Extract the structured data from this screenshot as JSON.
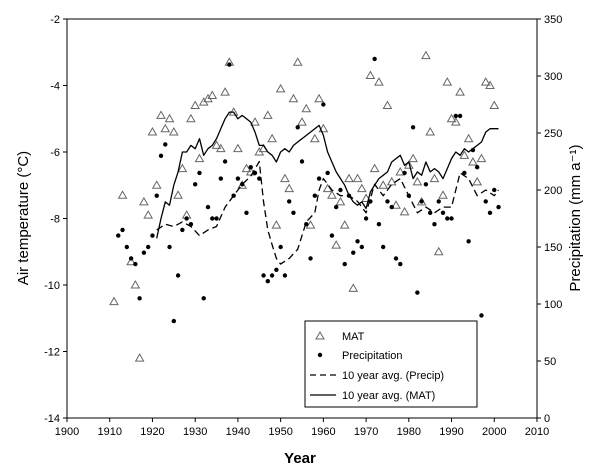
{
  "chart_data": {
    "type": "scatter",
    "xlabel": "Year",
    "ylabel_left": "Air temperature (°C)",
    "ylabel_right": "Precipitation (mm a⁻¹)",
    "xlim": [
      1900,
      2010
    ],
    "ylim_left": [
      -14,
      -2
    ],
    "ylim_right": [
      0,
      350
    ],
    "x_ticks": [
      1900,
      1910,
      1920,
      1930,
      1940,
      1950,
      1960,
      1970,
      1980,
      1990,
      2000,
      2010
    ],
    "y_left_ticks": [
      -14,
      -12,
      -10,
      -8,
      -6,
      -4,
      -2
    ],
    "y_right_ticks": [
      0,
      50,
      100,
      150,
      200,
      250,
      300,
      350
    ],
    "grid": false,
    "legend_position": "bottom-right",
    "series": [
      {
        "name": "MAT",
        "axis": "left",
        "marker": "triangle-open",
        "points": [
          [
            1911,
            -10.5
          ],
          [
            1913,
            -7.3
          ],
          [
            1915,
            -9.3
          ],
          [
            1916,
            -10.0
          ],
          [
            1917,
            -12.2
          ],
          [
            1918,
            -7.5
          ],
          [
            1919,
            -7.9
          ],
          [
            1920,
            -5.4
          ],
          [
            1921,
            -7.0
          ],
          [
            1922,
            -4.9
          ],
          [
            1923,
            -5.3
          ],
          [
            1924,
            -5.0
          ],
          [
            1925,
            -5.4
          ],
          [
            1926,
            -7.3
          ],
          [
            1927,
            -6.5
          ],
          [
            1928,
            -7.9
          ],
          [
            1929,
            -5.0
          ],
          [
            1930,
            -4.6
          ],
          [
            1931,
            -6.2
          ],
          [
            1932,
            -4.5
          ],
          [
            1933,
            -4.4
          ],
          [
            1934,
            -4.3
          ],
          [
            1935,
            -5.8
          ],
          [
            1936,
            -5.9
          ],
          [
            1937,
            -4.2
          ],
          [
            1938,
            -3.3
          ],
          [
            1939,
            -4.8
          ],
          [
            1940,
            -5.9
          ],
          [
            1941,
            -7.0
          ],
          [
            1942,
            -6.5
          ],
          [
            1943,
            -6.6
          ],
          [
            1944,
            -5.1
          ],
          [
            1945,
            -6.0
          ],
          [
            1946,
            -5.9
          ],
          [
            1947,
            -4.9
          ],
          [
            1948,
            -5.6
          ],
          [
            1949,
            -8.2
          ],
          [
            1950,
            -4.1
          ],
          [
            1951,
            -6.8
          ],
          [
            1952,
            -7.1
          ],
          [
            1953,
            -4.4
          ],
          [
            1954,
            -3.3
          ],
          [
            1955,
            -5.1
          ],
          [
            1956,
            -4.7
          ],
          [
            1957,
            -8.2
          ],
          [
            1958,
            -5.6
          ],
          [
            1959,
            -4.4
          ],
          [
            1960,
            -5.3
          ],
          [
            1961,
            -7.1
          ],
          [
            1962,
            -7.3
          ],
          [
            1963,
            -8.8
          ],
          [
            1964,
            -7.5
          ],
          [
            1965,
            -8.2
          ],
          [
            1966,
            -6.8
          ],
          [
            1967,
            -10.1
          ],
          [
            1968,
            -6.8
          ],
          [
            1969,
            -7.1
          ],
          [
            1970,
            -7.4
          ],
          [
            1971,
            -3.7
          ],
          [
            1972,
            -6.5
          ],
          [
            1973,
            -3.9
          ],
          [
            1974,
            -7.0
          ],
          [
            1975,
            -4.6
          ],
          [
            1976,
            -6.9
          ],
          [
            1977,
            -7.6
          ],
          [
            1978,
            -6.6
          ],
          [
            1979,
            -7.8
          ],
          [
            1980,
            -6.4
          ],
          [
            1981,
            -6.2
          ],
          [
            1982,
            -6.9
          ],
          [
            1983,
            -7.5
          ],
          [
            1984,
            -3.1
          ],
          [
            1985,
            -5.4
          ],
          [
            1986,
            -6.8
          ],
          [
            1987,
            -9.0
          ],
          [
            1988,
            -7.3
          ],
          [
            1989,
            -3.9
          ],
          [
            1990,
            -5.0
          ],
          [
            1991,
            -5.1
          ],
          [
            1992,
            -4.2
          ],
          [
            1993,
            -6.1
          ],
          [
            1994,
            -5.6
          ],
          [
            1995,
            -6.3
          ],
          [
            1996,
            -6.9
          ],
          [
            1997,
            -6.2
          ],
          [
            1998,
            -3.9
          ],
          [
            1999,
            -4.0
          ],
          [
            2000,
            -4.6
          ]
        ]
      },
      {
        "name": "Precipitation",
        "axis": "right",
        "marker": "dot",
        "points": [
          [
            1912,
            160
          ],
          [
            1913,
            165
          ],
          [
            1914,
            150
          ],
          [
            1915,
            140
          ],
          [
            1916,
            135
          ],
          [
            1917,
            105
          ],
          [
            1918,
            145
          ],
          [
            1919,
            150
          ],
          [
            1920,
            160
          ],
          [
            1921,
            195
          ],
          [
            1922,
            230
          ],
          [
            1923,
            240
          ],
          [
            1924,
            150
          ],
          [
            1925,
            85
          ],
          [
            1926,
            125
          ],
          [
            1927,
            165
          ],
          [
            1928,
            175
          ],
          [
            1929,
            170
          ],
          [
            1930,
            205
          ],
          [
            1931,
            215
          ],
          [
            1932,
            105
          ],
          [
            1933,
            185
          ],
          [
            1934,
            175
          ],
          [
            1935,
            175
          ],
          [
            1936,
            210
          ],
          [
            1937,
            225
          ],
          [
            1938,
            310
          ],
          [
            1939,
            195
          ],
          [
            1940,
            210
          ],
          [
            1941,
            205
          ],
          [
            1942,
            180
          ],
          [
            1943,
            220
          ],
          [
            1944,
            215
          ],
          [
            1945,
            210
          ],
          [
            1946,
            125
          ],
          [
            1947,
            120
          ],
          [
            1948,
            125
          ],
          [
            1949,
            130
          ],
          [
            1950,
            150
          ],
          [
            1951,
            125
          ],
          [
            1952,
            190
          ],
          [
            1953,
            180
          ],
          [
            1954,
            255
          ],
          [
            1955,
            225
          ],
          [
            1956,
            170
          ],
          [
            1957,
            140
          ],
          [
            1958,
            195
          ],
          [
            1959,
            210
          ],
          [
            1960,
            275
          ],
          [
            1961,
            215
          ],
          [
            1962,
            160
          ],
          [
            1963,
            185
          ],
          [
            1964,
            200
          ],
          [
            1965,
            135
          ],
          [
            1966,
            195
          ],
          [
            1967,
            145
          ],
          [
            1968,
            155
          ],
          [
            1969,
            150
          ],
          [
            1970,
            175
          ],
          [
            1971,
            190
          ],
          [
            1972,
            315
          ],
          [
            1973,
            170
          ],
          [
            1974,
            150
          ],
          [
            1975,
            190
          ],
          [
            1976,
            185
          ],
          [
            1977,
            140
          ],
          [
            1978,
            135
          ],
          [
            1979,
            215
          ],
          [
            1980,
            195
          ],
          [
            1981,
            255
          ],
          [
            1982,
            110
          ],
          [
            1983,
            190
          ],
          [
            1984,
            205
          ],
          [
            1985,
            180
          ],
          [
            1986,
            170
          ],
          [
            1987,
            190
          ],
          [
            1988,
            180
          ],
          [
            1989,
            175
          ],
          [
            1990,
            175
          ],
          [
            1991,
            265
          ],
          [
            1992,
            265
          ],
          [
            1993,
            215
          ],
          [
            1994,
            155
          ],
          [
            1995,
            235
          ],
          [
            1996,
            220
          ],
          [
            1997,
            90
          ],
          [
            1998,
            190
          ],
          [
            1999,
            180
          ],
          [
            2000,
            200
          ],
          [
            2001,
            185
          ]
        ]
      },
      {
        "name": "10 year avg. (Precip)",
        "axis": "right",
        "style": "dashed",
        "points": [
          [
            1921,
            165
          ],
          [
            1923,
            170
          ],
          [
            1925,
            168
          ],
          [
            1927,
            172
          ],
          [
            1929,
            168
          ],
          [
            1931,
            160
          ],
          [
            1933,
            165
          ],
          [
            1935,
            168
          ],
          [
            1937,
            185
          ],
          [
            1939,
            195
          ],
          [
            1941,
            205
          ],
          [
            1943,
            212
          ],
          [
            1945,
            225
          ],
          [
            1946,
            190
          ],
          [
            1947,
            165
          ],
          [
            1948,
            152
          ],
          [
            1949,
            140
          ],
          [
            1950,
            135
          ],
          [
            1952,
            140
          ],
          [
            1954,
            148
          ],
          [
            1955,
            160
          ],
          [
            1956,
            172
          ],
          [
            1958,
            180
          ],
          [
            1959,
            200
          ],
          [
            1960,
            210
          ],
          [
            1962,
            200
          ],
          [
            1964,
            195
          ],
          [
            1966,
            195
          ],
          [
            1968,
            190
          ],
          [
            1970,
            180
          ],
          [
            1972,
            205
          ],
          [
            1974,
            195
          ],
          [
            1976,
            205
          ],
          [
            1978,
            210
          ],
          [
            1980,
            195
          ],
          [
            1982,
            180
          ],
          [
            1984,
            185
          ],
          [
            1986,
            180
          ],
          [
            1988,
            185
          ],
          [
            1990,
            185
          ],
          [
            1992,
            215
          ],
          [
            1994,
            210
          ],
          [
            1996,
            195
          ],
          [
            1998,
            200
          ],
          [
            2000,
            195
          ],
          [
            2001,
            200
          ]
        ]
      },
      {
        "name": "10 year avg. (MAT)",
        "axis": "left",
        "style": "solid",
        "points": [
          [
            1921,
            -8.6
          ],
          [
            1922,
            -8.0
          ],
          [
            1923,
            -7.5
          ],
          [
            1924,
            -7.6
          ],
          [
            1925,
            -7.0
          ],
          [
            1926,
            -6.6
          ],
          [
            1927,
            -6.0
          ],
          [
            1928,
            -6.0
          ],
          [
            1929,
            -5.8
          ],
          [
            1930,
            -5.9
          ],
          [
            1931,
            -5.6
          ],
          [
            1932,
            -6.1
          ],
          [
            1933,
            -5.9
          ],
          [
            1934,
            -5.8
          ],
          [
            1935,
            -5.6
          ],
          [
            1936,
            -5.3
          ],
          [
            1937,
            -5.0
          ],
          [
            1938,
            -4.8
          ],
          [
            1939,
            -4.8
          ],
          [
            1940,
            -5.0
          ],
          [
            1941,
            -4.9
          ],
          [
            1942,
            -5.0
          ],
          [
            1943,
            -5.1
          ],
          [
            1944,
            -5.4
          ],
          [
            1945,
            -5.8
          ],
          [
            1946,
            -5.8
          ],
          [
            1947,
            -6.0
          ],
          [
            1948,
            -6.1
          ],
          [
            1949,
            -6.3
          ],
          [
            1950,
            -6.0
          ],
          [
            1951,
            -5.9
          ],
          [
            1952,
            -6.0
          ],
          [
            1953,
            -5.8
          ],
          [
            1954,
            -5.7
          ],
          [
            1955,
            -5.6
          ],
          [
            1956,
            -5.5
          ],
          [
            1957,
            -5.4
          ],
          [
            1958,
            -5.3
          ],
          [
            1959,
            -5.2
          ],
          [
            1960,
            -5.5
          ],
          [
            1961,
            -6.0
          ],
          [
            1962,
            -6.3
          ],
          [
            1963,
            -6.6
          ],
          [
            1964,
            -6.8
          ],
          [
            1965,
            -7.0
          ],
          [
            1966,
            -7.3
          ],
          [
            1967,
            -7.5
          ],
          [
            1968,
            -7.6
          ],
          [
            1969,
            -7.5
          ],
          [
            1970,
            -7.7
          ],
          [
            1971,
            -7.2
          ],
          [
            1972,
            -7.0
          ],
          [
            1973,
            -6.8
          ],
          [
            1974,
            -6.7
          ],
          [
            1975,
            -6.6
          ],
          [
            1976,
            -6.3
          ],
          [
            1977,
            -6.2
          ],
          [
            1978,
            -6.1
          ],
          [
            1979,
            -6.4
          ],
          [
            1980,
            -6.3
          ],
          [
            1981,
            -6.8
          ],
          [
            1982,
            -6.6
          ],
          [
            1983,
            -6.7
          ],
          [
            1984,
            -6.3
          ],
          [
            1985,
            -6.6
          ],
          [
            1986,
            -6.5
          ],
          [
            1987,
            -6.6
          ],
          [
            1988,
            -6.8
          ],
          [
            1989,
            -6.5
          ],
          [
            1990,
            -6.2
          ],
          [
            1991,
            -6.0
          ],
          [
            1992,
            -6.1
          ],
          [
            1993,
            -5.9
          ],
          [
            1994,
            -6.0
          ],
          [
            1995,
            -5.9
          ],
          [
            1996,
            -5.8
          ],
          [
            1997,
            -5.7
          ],
          [
            1998,
            -5.4
          ],
          [
            1999,
            -5.3
          ],
          [
            2000,
            -5.3
          ],
          [
            2001,
            -5.3
          ]
        ]
      }
    ]
  },
  "legend": {
    "items": [
      "MAT",
      "Precipitation",
      "10 year avg. (Precip)",
      "10 year avg. (MAT)"
    ]
  }
}
